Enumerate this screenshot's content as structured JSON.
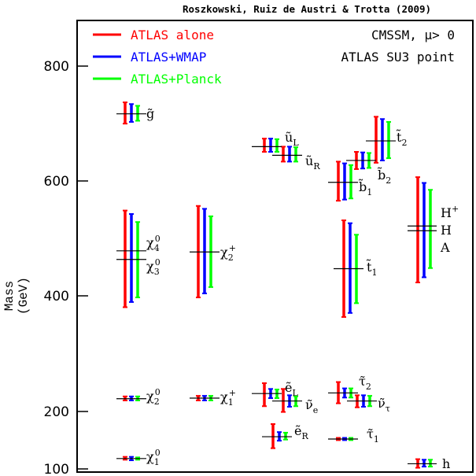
{
  "credit": "Roszkowski, Ruiz de Austri & Trotta (2009)",
  "chart_data": {
    "type": "error-bar",
    "ylabel": "Mass (GeV)",
    "ylim": [
      96,
      876
    ],
    "yticks": [
      100,
      200,
      400,
      600,
      800
    ],
    "info_lines": [
      "CMSSM, μ> 0",
      "ATLAS SU3 point"
    ],
    "series": [
      {
        "name": "ATLAS alone",
        "color": "#ff0000"
      },
      {
        "name": "ATLAS+WMAP",
        "color": "#0000ff"
      },
      {
        "name": "ATLAS+Planck",
        "color": "#00ff00"
      }
    ],
    "particles": [
      {
        "label": "g̃",
        "true_mass": 717,
        "ranges": [
          [
            700,
            737
          ],
          [
            703,
            734
          ],
          [
            705,
            731
          ]
        ]
      },
      {
        "label": "χ₄⁰",
        "true_mass": 479,
        "ranges": [
          [
            381,
            549
          ],
          [
            390,
            543
          ],
          [
            398,
            529
          ]
        ]
      },
      {
        "label": "χ₃⁰",
        "true_mass": 464,
        "ranges": null
      },
      {
        "label": "χ₂⁰",
        "true_mass": 222,
        "ranges": [
          [
            219,
            226
          ],
          [
            219,
            226
          ],
          [
            219,
            226
          ]
        ]
      },
      {
        "label": "χ₁⁰",
        "true_mass": 118,
        "ranges": [
          [
            116,
            121
          ],
          [
            115,
            121
          ],
          [
            116,
            120
          ]
        ]
      },
      {
        "label": "χ₂⁺",
        "true_mass": 477,
        "ranges": [
          [
            398,
            557
          ],
          [
            405,
            552
          ],
          [
            416,
            539
          ]
        ]
      },
      {
        "label": "χ₁⁺",
        "true_mass": 223,
        "ranges": [
          [
            219,
            227
          ],
          [
            219,
            227
          ],
          [
            219,
            227
          ]
        ]
      },
      {
        "label": "ũ_L",
        "true_mass": 660,
        "ranges": [
          [
            651,
            674
          ],
          [
            651,
            674
          ],
          [
            651,
            673
          ]
        ]
      },
      {
        "label": "ũ_R",
        "true_mass": 645,
        "ranges": [
          [
            634,
            660
          ],
          [
            634,
            660
          ],
          [
            634,
            659
          ]
        ]
      },
      {
        "label": "ẽ_L",
        "true_mass": 231,
        "ranges": [
          [
            209,
            249
          ],
          [
            223,
            239
          ],
          [
            223,
            238
          ]
        ]
      },
      {
        "label": "ν̃_e",
        "true_mass": 218,
        "ranges": [
          [
            199,
            239
          ],
          [
            208,
            228
          ],
          [
            209,
            226
          ]
        ]
      },
      {
        "label": "ẽ_R",
        "true_mass": 156,
        "ranges": [
          [
            136,
            178
          ],
          [
            149,
            164
          ],
          [
            151,
            163
          ]
        ]
      },
      {
        "label": "b̃₂",
        "true_mass": 636,
        "ranges": [
          [
            621,
            651
          ],
          [
            622,
            650
          ],
          [
            623,
            649
          ]
        ]
      },
      {
        "label": "b̃₁",
        "true_mass": 598,
        "ranges": [
          [
            566,
            634
          ],
          [
            568,
            631
          ],
          [
            570,
            628
          ]
        ]
      },
      {
        "label": "t̃₂",
        "true_mass": 670,
        "ranges": [
          [
            632,
            712
          ],
          [
            636,
            708
          ],
          [
            640,
            703
          ]
        ]
      },
      {
        "label": "t̃₁",
        "true_mass": 448,
        "ranges": [
          [
            364,
            532
          ],
          [
            371,
            527
          ],
          [
            388,
            507
          ]
        ]
      },
      {
        "label": "τ̃₂",
        "true_mass": 232,
        "ranges": [
          [
            214,
            251
          ],
          [
            224,
            240
          ],
          [
            224,
            240
          ]
        ]
      },
      {
        "label": "ν̃_τ",
        "true_mass": 218,
        "ranges": [
          [
            207,
            228
          ],
          [
            208,
            228
          ],
          [
            209,
            227
          ]
        ]
      },
      {
        "label": "τ̃₁",
        "true_mass": 152,
        "ranges": [
          [
            150,
            154
          ],
          [
            150,
            154
          ],
          [
            150,
            154
          ]
        ]
      },
      {
        "label": "H⁺ H A",
        "true_mass": 518,
        "ranges": [
          [
            424,
            607
          ],
          [
            433,
            597
          ],
          [
            449,
            585
          ]
        ]
      },
      {
        "label": "h",
        "true_mass": 109,
        "ranges": [
          [
            102,
            117
          ],
          [
            104,
            116
          ],
          [
            104,
            116
          ]
        ]
      }
    ]
  }
}
